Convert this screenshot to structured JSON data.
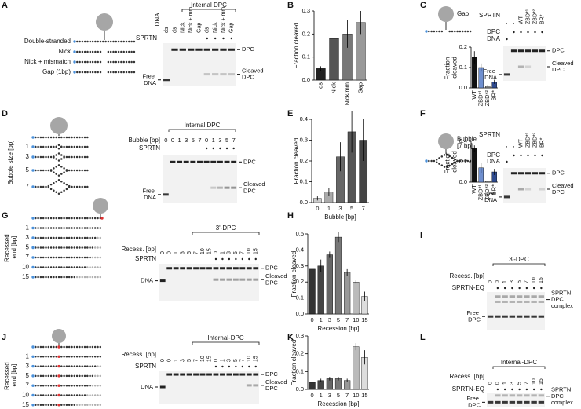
{
  "panels": [
    "A",
    "B",
    "C",
    "D",
    "E",
    "F",
    "G",
    "H",
    "I",
    "J",
    "K",
    "L"
  ],
  "schematics": {
    "A": {
      "labels": [
        "Double-stranded",
        "Nick",
        "Nick + mismatch",
        "Gap (1bp)"
      ]
    },
    "C": {
      "labels": [
        "Gap"
      ]
    },
    "D": {
      "labels": [
        "1",
        "3",
        "5",
        "7"
      ],
      "axis_label": "Bubble size [bp]"
    },
    "F": {
      "labels": [
        "Bubble [7 bp]"
      ]
    },
    "G": {
      "labels": [
        "1",
        "3",
        "5",
        "7",
        "10",
        "15"
      ],
      "axis_label": "Recessed end [bp]"
    },
    "J": {
      "labels": [
        "1",
        "3",
        "5",
        "7",
        "10",
        "15"
      ],
      "axis_label": "Recessed end [bp]"
    }
  },
  "gels": {
    "A": {
      "title": "Internal DPC",
      "head": "DNA",
      "lanes": [
        "ds",
        "ds",
        "Nick",
        "Nick + mm",
        "Gap",
        "ds",
        "Nick",
        "Nick + mm",
        "Gap"
      ],
      "rows": [
        "SPRTN"
      ],
      "right": [
        "DPC",
        "Cleaved DPC"
      ],
      "left": [
        "Free DNA"
      ]
    },
    "C": {
      "head": "SPRTN",
      "lanes": [
        "-",
        "-",
        "WT",
        "ZBD*¹",
        "ZBD*²",
        "BR*"
      ],
      "rows": [
        "DPC",
        "DNA"
      ],
      "right": [
        "DPC",
        "Cleaved DPC"
      ],
      "left": [
        "Free DNA"
      ]
    },
    "D": {
      "title": "Internal DPC",
      "head": "Bubble [bp]",
      "lanes": [
        "0",
        "0",
        "1",
        "3",
        "5",
        "7",
        "0",
        "1",
        "3",
        "5",
        "7"
      ],
      "rows": [
        "SPRTN"
      ],
      "right": [
        "DPC",
        "Cleaved DPC"
      ],
      "left": [
        "Free DNA"
      ]
    },
    "F": {
      "head": "SPRTN",
      "lanes": [
        "-",
        "-",
        "WT",
        "ZBD*¹",
        "ZBD*²",
        "BR*"
      ],
      "rows": [
        "DPC",
        "DNA"
      ],
      "right": [
        "DPC",
        "Cleaved DPC"
      ],
      "left": [
        "Free DNA"
      ]
    },
    "G": {
      "title": "3'-DPC",
      "head": "Recess. [bp]",
      "lanes": [
        "0",
        "0",
        "1",
        "3",
        "5",
        "7",
        "10",
        "15",
        "0",
        "1",
        "3",
        "5",
        "7",
        "10",
        "15"
      ],
      "rows": [
        "SPRTN"
      ],
      "right": [
        "DPC",
        "Cleaved DPC"
      ],
      "left": [
        "DNA"
      ]
    },
    "I": {
      "title": "3'-DPC",
      "head": "Recess. [bp]",
      "lanes": [
        "0",
        "0",
        "1",
        "3",
        "5",
        "7",
        "10",
        "15"
      ],
      "rows": [
        "SPRTN-EQ"
      ],
      "right": [
        "SPRTN DPC complex"
      ],
      "left": [
        "Free DPC"
      ]
    },
    "J": {
      "title": "Internal-DPC",
      "head": "Recess. [bp]",
      "lanes": [
        "0",
        "0",
        "1",
        "3",
        "5",
        "7",
        "10",
        "15",
        "0",
        "1",
        "3",
        "5",
        "7",
        "10",
        "15"
      ],
      "rows": [
        "SPRTN"
      ],
      "right": [
        "DPC",
        "Cleaved DPC"
      ],
      "left": [
        "DNA"
      ]
    },
    "L": {
      "title": "Internal-DPC",
      "head": "Recess. [bp]",
      "lanes": [
        "0",
        "0",
        "1",
        "3",
        "5",
        "7",
        "10",
        "15"
      ],
      "rows": [
        "SPRTN-EQ"
      ],
      "right": [
        "SPRTN DPC complex"
      ],
      "left": [
        "Free DPC"
      ]
    }
  },
  "chart_data": [
    {
      "type": "bar",
      "y_label": "Fraction cleaved",
      "categories": [
        "ds",
        "Nick",
        "Nick/mm",
        "Gap"
      ],
      "values": [
        0.05,
        0.18,
        0.2,
        0.25
      ],
      "errors": [
        0.01,
        0.05,
        0.06,
        0.05
      ],
      "colors": [
        "#222222",
        "#555555",
        "#777777",
        "#999999"
      ],
      "ylim": [
        0,
        0.3
      ],
      "yticks": [
        {
          "value": 0,
          "label": "0.0"
        },
        0.1,
        0.2,
        0.3
      ]
    },
    {
      "type": "bar",
      "y_label": "Fraction cleaved",
      "categories": [
        "WT",
        "ZBD*¹",
        "ZBD*²",
        "BR*"
      ],
      "values": [
        0.15,
        0.1,
        0.01,
        0.03
      ],
      "errors": [
        0.03,
        0.02,
        0.005,
        0.01
      ],
      "colors": [
        "#111111",
        "#6f8fcf",
        "#888888",
        "#2e4a8e"
      ],
      "ylim": [
        0,
        0.2
      ],
      "yticks": [
        {
          "value": 0,
          "label": "0.0"
        },
        0.1,
        0.2
      ]
    },
    {
      "type": "bar",
      "y_label": "Fraction cleaved",
      "x_label": "Bubble [bp]",
      "categories": [
        "0",
        "1",
        "3",
        "5",
        "7"
      ],
      "values": [
        0.02,
        0.05,
        0.22,
        0.34,
        0.3
      ],
      "errors": [
        0.01,
        0.02,
        0.07,
        0.1,
        0.1
      ],
      "colors": [
        "#cccccc",
        "#aaaaaa",
        "#666666",
        "#555555",
        "#444444"
      ],
      "ylim": [
        0,
        0.4
      ],
      "yticks": [
        {
          "value": 0,
          "label": "0.0"
        },
        0.1,
        0.2,
        0.3,
        0.4
      ]
    },
    {
      "type": "bar",
      "y_label": "Fraction cleaved",
      "categories": [
        "WT",
        "ZBD*¹",
        "ZBD*²",
        "BR*"
      ],
      "values": [
        0.33,
        0.14,
        0.01,
        0.1
      ],
      "errors": [
        0.03,
        0.05,
        0.005,
        0.03
      ],
      "colors": [
        "#111111",
        "#6f8fcf",
        "#888888",
        "#2e4a8e"
      ],
      "ylim": [
        0,
        0.4
      ],
      "yticks": [
        {
          "value": 0,
          "label": "0.0"
        },
        0.2,
        0.4
      ]
    },
    {
      "type": "bar",
      "y_label": "Fraction cleaved",
      "x_label": "Recession [bp]",
      "categories": [
        "0",
        "1",
        "3",
        "5",
        "7",
        "10",
        "15"
      ],
      "values": [
        0.28,
        0.3,
        0.37,
        0.48,
        0.26,
        0.2,
        0.11
      ],
      "errors": [
        0.02,
        0.04,
        0.02,
        0.03,
        0.02,
        0.01,
        0.03
      ],
      "colors": [
        "#333333",
        "#444444",
        "#666666",
        "#777777",
        "#999999",
        "#bbbbbb",
        "#dddddd"
      ],
      "ylim": [
        0,
        0.5
      ],
      "yticks": [
        {
          "value": 0,
          "label": "0.0"
        },
        0.1,
        0.2,
        0.3,
        0.4,
        0.5
      ]
    },
    {
      "type": "bar",
      "y_label": "Fraction cleaved",
      "x_label": "Recession [bp]",
      "categories": [
        "0",
        "1",
        "3",
        "5",
        "7",
        "10",
        "15"
      ],
      "values": [
        0.04,
        0.05,
        0.06,
        0.06,
        0.05,
        0.24,
        0.18
      ],
      "errors": [
        0.01,
        0.01,
        0.01,
        0.01,
        0.01,
        0.02,
        0.04
      ],
      "colors": [
        "#333333",
        "#444444",
        "#666666",
        "#777777",
        "#999999",
        "#bbbbbb",
        "#dddddd"
      ],
      "ylim": [
        0,
        0.3
      ],
      "yticks": [
        {
          "value": 0,
          "label": "0.0"
        },
        0.1,
        0.2,
        0.3
      ]
    }
  ]
}
